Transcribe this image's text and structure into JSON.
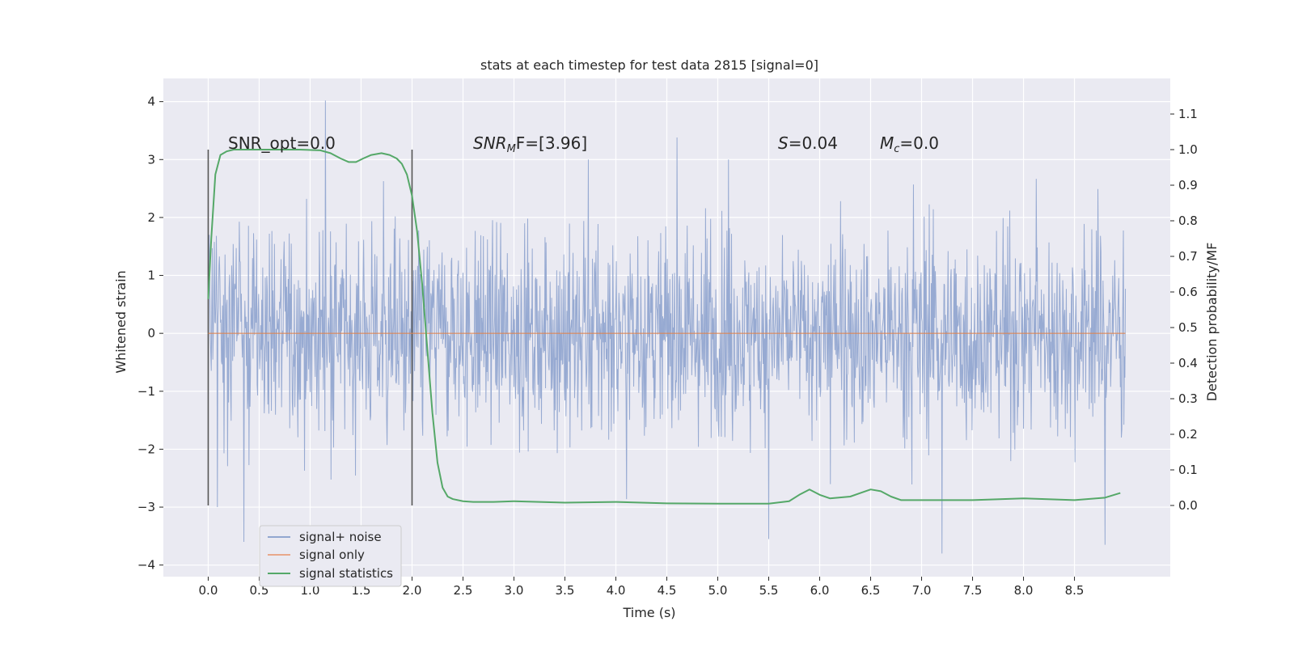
{
  "chart_data": {
    "type": "line",
    "title": "stats at each timestep for test data 2815 [signal=0]",
    "xlabel": "Time (s)",
    "ylabel": "Whitened strain",
    "ylabel_right": "Detection probability/MF",
    "xlim": [
      -0.44,
      9.44
    ],
    "ylim": [
      -4.2,
      4.4
    ],
    "ylim_right": [
      -0.2,
      1.2
    ],
    "x_ticks": [
      "0.0",
      "0.5",
      "1.0",
      "1.5",
      "2.0",
      "2.5",
      "3.0",
      "3.5",
      "4.0",
      "4.5",
      "5.0",
      "5.5",
      "6.0",
      "6.5",
      "7.0",
      "7.5",
      "8.0",
      "8.5"
    ],
    "y_ticks": [
      "4",
      "3",
      "2",
      "1",
      "0",
      "−1",
      "−2",
      "−3",
      "−4"
    ],
    "y_ticks_right": [
      "1.1",
      "1.0",
      "0.9",
      "0.8",
      "0.7",
      "0.6",
      "0.5",
      "0.4",
      "0.3",
      "0.2",
      "0.1",
      "0.0"
    ],
    "window_markers": [
      0.0,
      2.0
    ],
    "annotations": {
      "snr_opt": "SNR_opt=0.0",
      "snr_mf": "SNR",
      "snr_mf_sub": "M",
      "snr_mf_rest": "F=[3.96]",
      "s_label": "S",
      "s_value": "=0.04",
      "mc_label": "M",
      "mc_sub": "c",
      "mc_value": "=0.0"
    },
    "series": [
      {
        "name": "signal+ noise",
        "color": "#92a7d0",
        "x_range": [
          0.0,
          9.0
        ],
        "description": "whitened noise, amplitude roughly ±2 with spikes to ~4",
        "typical_envelope": [
          -2.0,
          2.0
        ],
        "peaks": [
          {
            "x": 1.15,
            "y": 4.02
          },
          {
            "x": 0.35,
            "y": -3.6
          },
          {
            "x": 4.6,
            "y": 3.38
          },
          {
            "x": 5.5,
            "y": -3.55
          },
          {
            "x": 7.2,
            "y": -3.8
          },
          {
            "x": 8.8,
            "y": -3.65
          }
        ]
      },
      {
        "name": "signal only",
        "color": "#dd8452",
        "x": [
          0.0,
          9.0
        ],
        "y": [
          0.0,
          0.0
        ]
      },
      {
        "name": "signal statistics",
        "color": "#55a868",
        "axis": "right",
        "x": [
          0.0,
          0.03,
          0.07,
          0.12,
          0.18,
          0.25,
          0.35,
          0.5,
          0.7,
          0.9,
          1.1,
          1.2,
          1.3,
          1.38,
          1.45,
          1.52,
          1.6,
          1.7,
          1.78,
          1.85,
          1.9,
          1.95,
          2.0,
          2.05,
          2.1,
          2.15,
          2.2,
          2.25,
          2.3,
          2.35,
          2.4,
          2.5,
          2.6,
          2.8,
          3.0,
          3.5,
          4.0,
          4.5,
          5.0,
          5.5,
          5.7,
          5.8,
          5.9,
          6.0,
          6.1,
          6.3,
          6.4,
          6.5,
          6.6,
          6.7,
          6.8,
          7.0,
          7.5,
          8.0,
          8.5,
          8.8,
          8.95
        ],
        "y": [
          0.58,
          0.75,
          0.93,
          0.985,
          0.995,
          1.0,
          1.0,
          1.0,
          1.0,
          1.0,
          0.998,
          0.99,
          0.975,
          0.965,
          0.965,
          0.975,
          0.985,
          0.99,
          0.985,
          0.975,
          0.96,
          0.93,
          0.87,
          0.77,
          0.62,
          0.44,
          0.26,
          0.12,
          0.05,
          0.025,
          0.018,
          0.012,
          0.01,
          0.01,
          0.012,
          0.008,
          0.01,
          0.006,
          0.005,
          0.005,
          0.012,
          0.03,
          0.045,
          0.03,
          0.02,
          0.025,
          0.035,
          0.045,
          0.04,
          0.025,
          0.015,
          0.015,
          0.015,
          0.02,
          0.015,
          0.022,
          0.035
        ]
      }
    ],
    "legend": {
      "position": "lower-left",
      "entries": [
        "signal+ noise",
        "signal only",
        "signal statistics"
      ]
    },
    "colors": {
      "background": "#eaeaf2",
      "grid": "#ffffff",
      "marker": "#555555"
    }
  }
}
